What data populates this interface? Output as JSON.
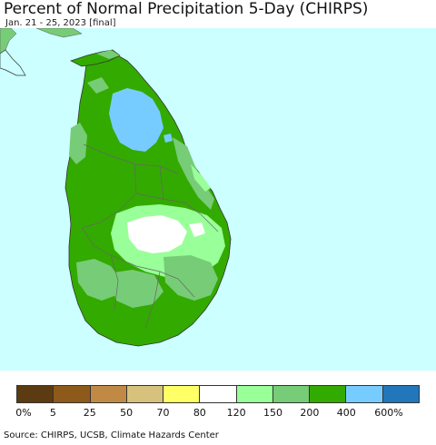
{
  "title": "Percent of Normal Precipitation 5-Day (CHIRPS)",
  "subtitle": "Jan. 21 - 25, 2023 [final]",
  "source": "Source: CHIRPS, UCSB, Climate Hazards Center",
  "colors": {
    "ocean": "#ccffff",
    "india_land": "#66cc66",
    "boundary": "#666666"
  },
  "legend": {
    "colors": [
      "#5c3b12",
      "#8e5a1c",
      "#c08a45",
      "#d6c27c",
      "#ffff66",
      "#ffffff",
      "#99ff99",
      "#77cc77",
      "#33aa00",
      "#77ccff",
      "#2277bb"
    ],
    "tick_labels": [
      "0%",
      "5",
      "25",
      "50",
      "70",
      "80",
      "120",
      "150",
      "200",
      "400",
      "600%"
    ]
  }
}
